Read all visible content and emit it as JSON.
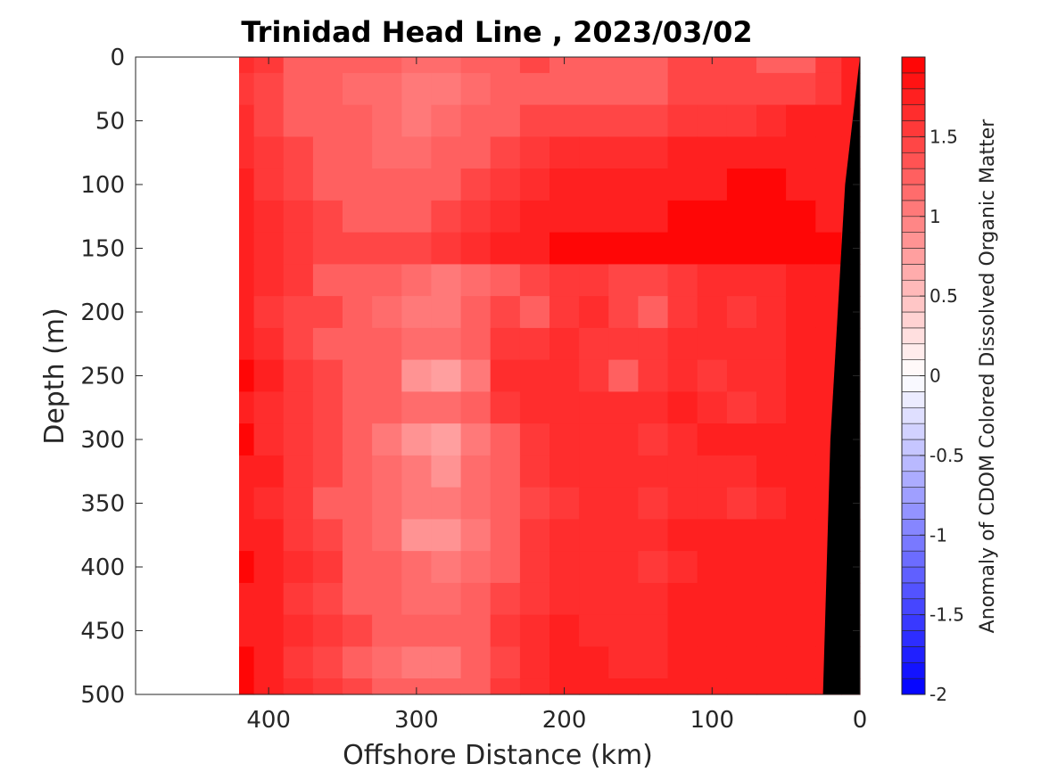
{
  "chart_data": {
    "type": "heatmap",
    "title": "Trinidad Head Line , 2023/03/02",
    "xlabel": "Offshore Distance (km)",
    "ylabel": "Depth (m)",
    "xlim": [
      490,
      0
    ],
    "ylim": [
      0,
      500
    ],
    "x_reversed": true,
    "y_reversed": true,
    "x_ticks": [
      400,
      300,
      200,
      100,
      0
    ],
    "y_ticks": [
      0,
      50,
      100,
      150,
      200,
      250,
      300,
      350,
      400,
      450,
      500
    ],
    "data_extent_x": [
      420,
      0
    ],
    "colorbar": {
      "label": "Anomaly of CDOM Colored Dissolved Organic Matter",
      "range": [
        -2,
        2
      ],
      "ticks": [
        -2,
        -1.5,
        -1,
        -0.5,
        0,
        0.5,
        1,
        1.5
      ],
      "levels": 40,
      "colors": {
        "negative": "#0000ff",
        "zero": "#ffffff",
        "positive": "#ff0000"
      }
    },
    "seafloor": {
      "color": "#000000",
      "points": [
        [
          0,
          0
        ],
        [
          10,
          100
        ],
        [
          20,
          300
        ],
        [
          25,
          500
        ]
      ]
    },
    "depths": [
      0,
      25,
      50,
      75,
      100,
      125,
      150,
      175,
      200,
      225,
      250,
      275,
      300,
      325,
      350,
      375,
      400,
      425,
      450,
      475,
      500
    ],
    "distances": [
      420,
      400,
      380,
      360,
      340,
      320,
      300,
      280,
      260,
      240,
      220,
      200,
      180,
      160,
      140,
      120,
      100,
      80,
      60,
      40,
      20,
      5
    ],
    "values": [
      [
        1.6,
        1.5,
        1.3,
        1.2,
        1.2,
        1.2,
        1.1,
        1.1,
        1.2,
        1.3,
        1.4,
        1.3,
        1.3,
        1.3,
        1.3,
        1.4,
        1.4,
        1.4,
        1.3,
        1.3,
        1.5,
        1.8
      ],
      [
        1.5,
        1.4,
        1.3,
        1.2,
        1.1,
        1.1,
        1.0,
        1.0,
        1.1,
        1.2,
        1.3,
        1.3,
        1.3,
        1.3,
        1.3,
        1.4,
        1.4,
        1.4,
        1.4,
        1.4,
        1.5,
        1.8
      ],
      [
        1.6,
        1.4,
        1.3,
        1.3,
        1.2,
        1.1,
        1.0,
        1.1,
        1.2,
        1.3,
        1.4,
        1.4,
        1.4,
        1.4,
        1.4,
        1.5,
        1.5,
        1.5,
        1.6,
        1.7,
        1.8,
        1.8
      ],
      [
        1.6,
        1.5,
        1.4,
        1.3,
        1.2,
        1.1,
        1.1,
        1.2,
        1.3,
        1.4,
        1.5,
        1.6,
        1.6,
        1.6,
        1.6,
        1.7,
        1.7,
        1.7,
        1.7,
        1.8,
        1.8,
        1.8
      ],
      [
        1.7,
        1.5,
        1.4,
        1.3,
        1.2,
        1.2,
        1.2,
        1.3,
        1.4,
        1.5,
        1.6,
        1.7,
        1.7,
        1.7,
        1.7,
        1.8,
        1.8,
        1.9,
        1.9,
        1.8,
        1.8,
        1.8
      ],
      [
        1.7,
        1.6,
        1.5,
        1.4,
        1.3,
        1.3,
        1.3,
        1.4,
        1.5,
        1.6,
        1.7,
        1.8,
        1.8,
        1.8,
        1.8,
        1.9,
        1.9,
        1.9,
        1.9,
        1.9,
        1.8,
        1.8
      ],
      [
        1.8,
        1.6,
        1.5,
        1.4,
        1.4,
        1.4,
        1.4,
        1.5,
        1.6,
        1.7,
        1.8,
        1.9,
        1.9,
        1.9,
        1.9,
        1.9,
        1.9,
        1.9,
        1.9,
        1.9,
        1.9,
        1.8
      ],
      [
        1.7,
        1.6,
        1.5,
        1.3,
        1.2,
        1.2,
        1.1,
        1.0,
        1.1,
        1.3,
        1.4,
        1.5,
        1.5,
        1.4,
        1.4,
        1.5,
        1.6,
        1.6,
        1.6,
        1.7,
        1.7,
        1.8
      ],
      [
        1.8,
        1.5,
        1.4,
        1.4,
        1.3,
        1.1,
        1.0,
        1.0,
        1.2,
        1.4,
        1.3,
        1.5,
        1.6,
        1.4,
        1.3,
        1.5,
        1.6,
        1.5,
        1.6,
        1.7,
        1.7,
        1.8
      ],
      [
        1.7,
        1.6,
        1.4,
        1.3,
        1.2,
        1.2,
        1.1,
        1.1,
        1.3,
        1.5,
        1.5,
        1.6,
        1.5,
        1.5,
        1.5,
        1.6,
        1.6,
        1.6,
        1.6,
        1.7,
        1.7,
        1.8
      ],
      [
        1.9,
        1.7,
        1.5,
        1.4,
        1.3,
        1.2,
        0.9,
        0.8,
        1.0,
        1.6,
        1.6,
        1.6,
        1.5,
        1.3,
        1.5,
        1.6,
        1.5,
        1.6,
        1.6,
        1.7,
        1.8,
        1.8
      ],
      [
        1.8,
        1.6,
        1.5,
        1.4,
        1.3,
        1.2,
        1.1,
        1.1,
        1.3,
        1.5,
        1.6,
        1.6,
        1.6,
        1.6,
        1.6,
        1.7,
        1.6,
        1.5,
        1.6,
        1.7,
        1.8,
        1.8
      ],
      [
        1.9,
        1.6,
        1.5,
        1.4,
        1.2,
        1.0,
        0.9,
        0.8,
        1.0,
        1.3,
        1.5,
        1.6,
        1.6,
        1.6,
        1.5,
        1.6,
        1.7,
        1.7,
        1.7,
        1.8,
        1.8,
        1.8
      ],
      [
        1.8,
        1.7,
        1.5,
        1.4,
        1.3,
        1.1,
        1.0,
        0.9,
        1.1,
        1.3,
        1.5,
        1.6,
        1.6,
        1.6,
        1.6,
        1.6,
        1.6,
        1.6,
        1.7,
        1.8,
        1.8,
        1.8
      ],
      [
        1.8,
        1.6,
        1.5,
        1.3,
        1.2,
        1.1,
        1.0,
        1.0,
        1.1,
        1.3,
        1.4,
        1.5,
        1.6,
        1.6,
        1.5,
        1.6,
        1.6,
        1.5,
        1.6,
        1.7,
        1.8,
        1.8
      ],
      [
        1.8,
        1.7,
        1.5,
        1.4,
        1.3,
        1.1,
        0.9,
        0.9,
        1.0,
        1.3,
        1.5,
        1.6,
        1.6,
        1.6,
        1.6,
        1.7,
        1.7,
        1.7,
        1.8,
        1.8,
        1.8,
        1.8
      ],
      [
        1.9,
        1.7,
        1.6,
        1.5,
        1.3,
        1.2,
        1.1,
        1.0,
        1.1,
        1.3,
        1.5,
        1.6,
        1.6,
        1.6,
        1.5,
        1.6,
        1.7,
        1.7,
        1.7,
        1.8,
        1.8,
        1.8
      ],
      [
        1.8,
        1.7,
        1.5,
        1.4,
        1.3,
        1.2,
        1.1,
        1.1,
        1.2,
        1.4,
        1.5,
        1.6,
        1.6,
        1.6,
        1.6,
        1.7,
        1.7,
        1.7,
        1.7,
        1.8,
        1.8,
        1.8
      ],
      [
        1.8,
        1.7,
        1.6,
        1.5,
        1.4,
        1.3,
        1.2,
        1.2,
        1.3,
        1.5,
        1.6,
        1.7,
        1.6,
        1.6,
        1.6,
        1.7,
        1.7,
        1.7,
        1.8,
        1.8,
        1.8,
        1.8
      ],
      [
        1.9,
        1.7,
        1.5,
        1.4,
        1.3,
        1.1,
        1.0,
        1.0,
        1.2,
        1.4,
        1.6,
        1.7,
        1.7,
        1.6,
        1.6,
        1.7,
        1.7,
        1.7,
        1.7,
        1.8,
        1.8,
        1.8
      ],
      [
        1.9,
        1.8,
        1.6,
        1.5,
        1.4,
        1.3,
        1.2,
        1.2,
        1.3,
        1.5,
        1.6,
        1.7,
        1.7,
        1.7,
        1.7,
        1.7,
        1.7,
        1.7,
        1.8,
        1.8,
        1.8,
        1.8
      ]
    ]
  }
}
